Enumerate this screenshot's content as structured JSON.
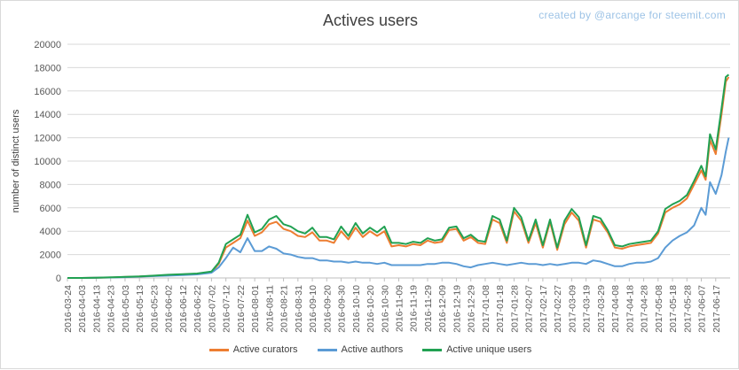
{
  "chart_data": {
    "type": "line",
    "title": "Actives users",
    "credit": "created by @arcange for steemit.com",
    "ylabel": "number of distinct users",
    "xlabel": "",
    "ylim": [
      0,
      20000
    ],
    "yticks": [
      "0",
      "2000",
      "4000",
      "6000",
      "8000",
      "10000",
      "12000",
      "14000",
      "16000",
      "18000",
      "20000"
    ],
    "grid": true,
    "legend_position": "bottom",
    "x_start": "2016-03-24",
    "x_end": "2017-06-27",
    "x_ticks": [
      "2016-03-24",
      "2016-04-03",
      "2016-04-13",
      "2016-04-23",
      "2016-05-03",
      "2016-05-13",
      "2016-05-23",
      "2016-06-02",
      "2016-06-12",
      "2016-06-22",
      "2016-07-02",
      "2016-07-12",
      "2016-07-22",
      "2016-08-01",
      "2016-08-11",
      "2016-08-21",
      "2016-08-31",
      "2016-09-10",
      "2016-09-20",
      "2016-09-30",
      "2016-10-10",
      "2016-10-20",
      "2016-10-30",
      "2016-11-09",
      "2016-11-19",
      "2016-11-29",
      "2016-12-09",
      "2016-12-19",
      "2016-12-29",
      "2017-01-08",
      "2017-01-18",
      "2017-01-28",
      "2017-02-07",
      "2017-02-17",
      "2017-02-27",
      "2017-03-09",
      "2017-03-19",
      "2017-03-29",
      "2017-04-08",
      "2017-04-18",
      "2017-04-28",
      "2017-05-08",
      "2017-05-18",
      "2017-05-28",
      "2017-06-07",
      "2017-06-17"
    ],
    "series": [
      {
        "name": "Active curators",
        "color": "#ed7d31",
        "points": [
          [
            "2016-03-24",
            0
          ],
          [
            "2016-04-03",
            0
          ],
          [
            "2016-04-13",
            20
          ],
          [
            "2016-04-23",
            40
          ],
          [
            "2016-05-03",
            80
          ],
          [
            "2016-05-13",
            120
          ],
          [
            "2016-05-23",
            180
          ],
          [
            "2016-06-02",
            250
          ],
          [
            "2016-06-12",
            300
          ],
          [
            "2016-06-22",
            350
          ],
          [
            "2016-07-02",
            500
          ],
          [
            "2016-07-07",
            1200
          ],
          [
            "2016-07-12",
            2600
          ],
          [
            "2016-07-17",
            3000
          ],
          [
            "2016-07-22",
            3400
          ],
          [
            "2016-07-27",
            4900
          ],
          [
            "2016-08-01",
            3600
          ],
          [
            "2016-08-06",
            3900
          ],
          [
            "2016-08-11",
            4600
          ],
          [
            "2016-08-16",
            4800
          ],
          [
            "2016-08-21",
            4200
          ],
          [
            "2016-08-26",
            4000
          ],
          [
            "2016-08-31",
            3600
          ],
          [
            "2016-09-05",
            3500
          ],
          [
            "2016-09-10",
            3900
          ],
          [
            "2016-09-15",
            3200
          ],
          [
            "2016-09-20",
            3200
          ],
          [
            "2016-09-25",
            3000
          ],
          [
            "2016-09-30",
            4000
          ],
          [
            "2016-10-05",
            3300
          ],
          [
            "2016-10-10",
            4300
          ],
          [
            "2016-10-15",
            3500
          ],
          [
            "2016-10-20",
            4000
          ],
          [
            "2016-10-25",
            3600
          ],
          [
            "2016-10-30",
            4000
          ],
          [
            "2016-11-04",
            2700
          ],
          [
            "2016-11-09",
            2800
          ],
          [
            "2016-11-14",
            2700
          ],
          [
            "2016-11-19",
            2900
          ],
          [
            "2016-11-24",
            2800
          ],
          [
            "2016-11-29",
            3200
          ],
          [
            "2016-12-04",
            3000
          ],
          [
            "2016-12-09",
            3100
          ],
          [
            "2016-12-14",
            4100
          ],
          [
            "2016-12-19",
            4200
          ],
          [
            "2016-12-24",
            3200
          ],
          [
            "2016-12-29",
            3500
          ],
          [
            "2017-01-03",
            3000
          ],
          [
            "2017-01-08",
            2900
          ],
          [
            "2017-01-13",
            5000
          ],
          [
            "2017-01-18",
            4700
          ],
          [
            "2017-01-23",
            3000
          ],
          [
            "2017-01-28",
            5700
          ],
          [
            "2017-02-02",
            4900
          ],
          [
            "2017-02-07",
            3000
          ],
          [
            "2017-02-12",
            4700
          ],
          [
            "2017-02-17",
            2600
          ],
          [
            "2017-02-22",
            4800
          ],
          [
            "2017-02-27",
            2400
          ],
          [
            "2017-03-04",
            4600
          ],
          [
            "2017-03-09",
            5600
          ],
          [
            "2017-03-14",
            4900
          ],
          [
            "2017-03-19",
            2600
          ],
          [
            "2017-03-24",
            5000
          ],
          [
            "2017-03-29",
            4800
          ],
          [
            "2017-04-03",
            3900
          ],
          [
            "2017-04-08",
            2600
          ],
          [
            "2017-04-13",
            2500
          ],
          [
            "2017-04-18",
            2700
          ],
          [
            "2017-04-23",
            2800
          ],
          [
            "2017-04-28",
            2900
          ],
          [
            "2017-05-03",
            3000
          ],
          [
            "2017-05-08",
            3800
          ],
          [
            "2017-05-13",
            5600
          ],
          [
            "2017-05-18",
            6000
          ],
          [
            "2017-05-23",
            6300
          ],
          [
            "2017-05-28",
            6800
          ],
          [
            "2017-06-02",
            8000
          ],
          [
            "2017-06-07",
            9200
          ],
          [
            "2017-06-10",
            8400
          ],
          [
            "2017-06-13",
            11800
          ],
          [
            "2017-06-17",
            10600
          ],
          [
            "2017-06-21",
            14000
          ],
          [
            "2017-06-24",
            16800
          ],
          [
            "2017-06-26",
            17200
          ]
        ]
      },
      {
        "name": "Active authors",
        "color": "#5b9bd5",
        "points": [
          [
            "2016-03-24",
            0
          ],
          [
            "2016-04-03",
            0
          ],
          [
            "2016-04-13",
            20
          ],
          [
            "2016-04-23",
            40
          ],
          [
            "2016-05-03",
            70
          ],
          [
            "2016-05-13",
            110
          ],
          [
            "2016-05-23",
            160
          ],
          [
            "2016-06-02",
            200
          ],
          [
            "2016-06-12",
            250
          ],
          [
            "2016-06-22",
            300
          ],
          [
            "2016-07-02",
            450
          ],
          [
            "2016-07-07",
            900
          ],
          [
            "2016-07-12",
            1700
          ],
          [
            "2016-07-17",
            2600
          ],
          [
            "2016-07-22",
            2200
          ],
          [
            "2016-07-27",
            3400
          ],
          [
            "2016-08-01",
            2300
          ],
          [
            "2016-08-06",
            2300
          ],
          [
            "2016-08-11",
            2700
          ],
          [
            "2016-08-16",
            2500
          ],
          [
            "2016-08-21",
            2100
          ],
          [
            "2016-08-26",
            2000
          ],
          [
            "2016-08-31",
            1800
          ],
          [
            "2016-09-05",
            1700
          ],
          [
            "2016-09-10",
            1700
          ],
          [
            "2016-09-15",
            1500
          ],
          [
            "2016-09-20",
            1500
          ],
          [
            "2016-09-25",
            1400
          ],
          [
            "2016-09-30",
            1400
          ],
          [
            "2016-10-05",
            1300
          ],
          [
            "2016-10-10",
            1400
          ],
          [
            "2016-10-15",
            1300
          ],
          [
            "2016-10-20",
            1300
          ],
          [
            "2016-10-25",
            1200
          ],
          [
            "2016-10-30",
            1300
          ],
          [
            "2016-11-04",
            1100
          ],
          [
            "2016-11-09",
            1100
          ],
          [
            "2016-11-14",
            1100
          ],
          [
            "2016-11-19",
            1100
          ],
          [
            "2016-11-24",
            1100
          ],
          [
            "2016-11-29",
            1200
          ],
          [
            "2016-12-04",
            1200
          ],
          [
            "2016-12-09",
            1300
          ],
          [
            "2016-12-14",
            1300
          ],
          [
            "2016-12-19",
            1200
          ],
          [
            "2016-12-24",
            1000
          ],
          [
            "2016-12-29",
            900
          ],
          [
            "2017-01-03",
            1100
          ],
          [
            "2017-01-08",
            1200
          ],
          [
            "2017-01-13",
            1300
          ],
          [
            "2017-01-18",
            1200
          ],
          [
            "2017-01-23",
            1100
          ],
          [
            "2017-01-28",
            1200
          ],
          [
            "2017-02-02",
            1300
          ],
          [
            "2017-02-07",
            1200
          ],
          [
            "2017-02-12",
            1200
          ],
          [
            "2017-02-17",
            1100
          ],
          [
            "2017-02-22",
            1200
          ],
          [
            "2017-02-27",
            1100
          ],
          [
            "2017-03-04",
            1200
          ],
          [
            "2017-03-09",
            1300
          ],
          [
            "2017-03-14",
            1300
          ],
          [
            "2017-03-19",
            1200
          ],
          [
            "2017-03-24",
            1500
          ],
          [
            "2017-03-29",
            1400
          ],
          [
            "2017-04-03",
            1200
          ],
          [
            "2017-04-08",
            1000
          ],
          [
            "2017-04-13",
            1000
          ],
          [
            "2017-04-18",
            1200
          ],
          [
            "2017-04-23",
            1300
          ],
          [
            "2017-04-28",
            1300
          ],
          [
            "2017-05-03",
            1400
          ],
          [
            "2017-05-08",
            1700
          ],
          [
            "2017-05-13",
            2600
          ],
          [
            "2017-05-18",
            3200
          ],
          [
            "2017-05-23",
            3600
          ],
          [
            "2017-05-28",
            3900
          ],
          [
            "2017-06-02",
            4500
          ],
          [
            "2017-06-07",
            6000
          ],
          [
            "2017-06-10",
            5400
          ],
          [
            "2017-06-13",
            8200
          ],
          [
            "2017-06-17",
            7200
          ],
          [
            "2017-06-21",
            8800
          ],
          [
            "2017-06-24",
            10800
          ],
          [
            "2017-06-26",
            12000
          ]
        ]
      },
      {
        "name": "Active unique users",
        "color": "#21a152",
        "points": [
          [
            "2016-03-24",
            0
          ],
          [
            "2016-04-03",
            0
          ],
          [
            "2016-04-13",
            25
          ],
          [
            "2016-04-23",
            50
          ],
          [
            "2016-05-03",
            90
          ],
          [
            "2016-05-13",
            130
          ],
          [
            "2016-05-23",
            200
          ],
          [
            "2016-06-02",
            270
          ],
          [
            "2016-06-12",
            320
          ],
          [
            "2016-06-22",
            380
          ],
          [
            "2016-07-02",
            550
          ],
          [
            "2016-07-07",
            1300
          ],
          [
            "2016-07-12",
            2900
          ],
          [
            "2016-07-17",
            3300
          ],
          [
            "2016-07-22",
            3700
          ],
          [
            "2016-07-27",
            5400
          ],
          [
            "2016-08-01",
            3900
          ],
          [
            "2016-08-06",
            4200
          ],
          [
            "2016-08-11",
            5000
          ],
          [
            "2016-08-16",
            5300
          ],
          [
            "2016-08-21",
            4600
          ],
          [
            "2016-08-26",
            4400
          ],
          [
            "2016-08-31",
            4000
          ],
          [
            "2016-09-05",
            3800
          ],
          [
            "2016-09-10",
            4300
          ],
          [
            "2016-09-15",
            3500
          ],
          [
            "2016-09-20",
            3500
          ],
          [
            "2016-09-25",
            3300
          ],
          [
            "2016-09-30",
            4400
          ],
          [
            "2016-10-05",
            3600
          ],
          [
            "2016-10-10",
            4700
          ],
          [
            "2016-10-15",
            3800
          ],
          [
            "2016-10-20",
            4300
          ],
          [
            "2016-10-25",
            3900
          ],
          [
            "2016-10-30",
            4400
          ],
          [
            "2016-11-04",
            3000
          ],
          [
            "2016-11-09",
            3000
          ],
          [
            "2016-11-14",
            2900
          ],
          [
            "2016-11-19",
            3100
          ],
          [
            "2016-11-24",
            3000
          ],
          [
            "2016-11-29",
            3400
          ],
          [
            "2016-12-04",
            3200
          ],
          [
            "2016-12-09",
            3300
          ],
          [
            "2016-12-14",
            4300
          ],
          [
            "2016-12-19",
            4400
          ],
          [
            "2016-12-24",
            3400
          ],
          [
            "2016-12-29",
            3700
          ],
          [
            "2017-01-03",
            3200
          ],
          [
            "2017-01-08",
            3100
          ],
          [
            "2017-01-13",
            5300
          ],
          [
            "2017-01-18",
            5000
          ],
          [
            "2017-01-23",
            3200
          ],
          [
            "2017-01-28",
            6000
          ],
          [
            "2017-02-02",
            5200
          ],
          [
            "2017-02-07",
            3200
          ],
          [
            "2017-02-12",
            5000
          ],
          [
            "2017-02-17",
            2800
          ],
          [
            "2017-02-22",
            5000
          ],
          [
            "2017-02-27",
            2600
          ],
          [
            "2017-03-04",
            4900
          ],
          [
            "2017-03-09",
            5900
          ],
          [
            "2017-03-14",
            5200
          ],
          [
            "2017-03-19",
            2800
          ],
          [
            "2017-03-24",
            5300
          ],
          [
            "2017-03-29",
            5100
          ],
          [
            "2017-04-03",
            4100
          ],
          [
            "2017-04-08",
            2800
          ],
          [
            "2017-04-13",
            2700
          ],
          [
            "2017-04-18",
            2900
          ],
          [
            "2017-04-23",
            3000
          ],
          [
            "2017-04-28",
            3100
          ],
          [
            "2017-05-03",
            3200
          ],
          [
            "2017-05-08",
            4000
          ],
          [
            "2017-05-13",
            5900
          ],
          [
            "2017-05-18",
            6300
          ],
          [
            "2017-05-23",
            6600
          ],
          [
            "2017-05-28",
            7100
          ],
          [
            "2017-06-02",
            8300
          ],
          [
            "2017-06-07",
            9600
          ],
          [
            "2017-06-10",
            8700
          ],
          [
            "2017-06-13",
            12300
          ],
          [
            "2017-06-17",
            11000
          ],
          [
            "2017-06-21",
            14500
          ],
          [
            "2017-06-24",
            17200
          ],
          [
            "2017-06-26",
            17400
          ]
        ]
      }
    ]
  }
}
